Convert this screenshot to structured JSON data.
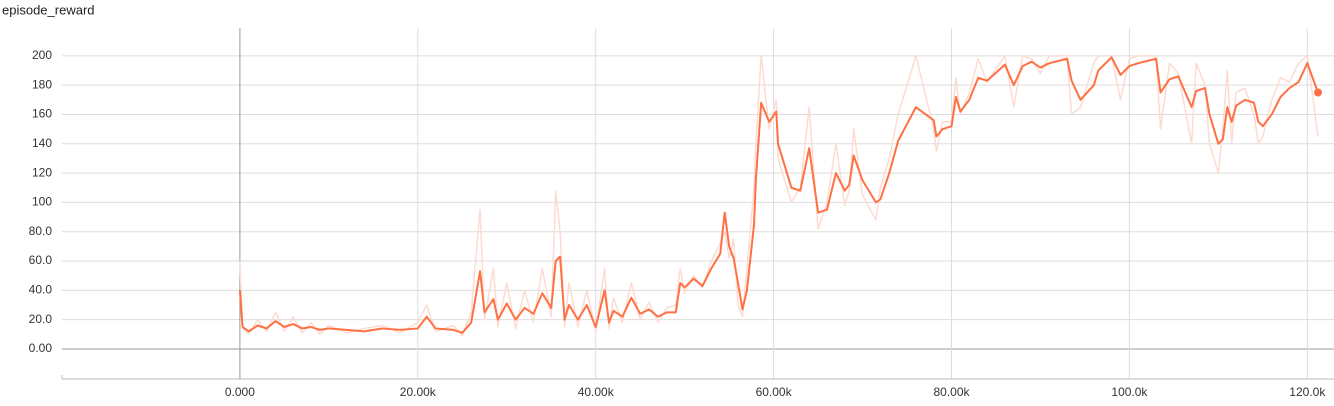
{
  "chart_data": {
    "type": "line",
    "title": "episode_reward",
    "x": [
      0,
      300,
      1000,
      2000,
      3000,
      4000,
      5000,
      6000,
      7000,
      8000,
      9000,
      10000,
      12000,
      14000,
      16000,
      18000,
      20000,
      21000,
      22000,
      24000,
      25000,
      26000,
      27000,
      27500,
      28500,
      29000,
      30000,
      31000,
      32000,
      33000,
      34000,
      35000,
      35500,
      36000,
      36500,
      37000,
      38000,
      39000,
      40000,
      41000,
      41500,
      42000,
      43000,
      44000,
      45000,
      46000,
      47000,
      48000,
      49000,
      49500,
      50000,
      51000,
      52000,
      53000,
      54000,
      54500,
      55000,
      55500,
      56000,
      56500,
      57000,
      57800,
      58000,
      58600,
      59500,
      60300,
      60500,
      62000,
      63000,
      64000,
      65000,
      66000,
      67000,
      68000,
      68500,
      69000,
      70000,
      71500,
      72000,
      73000,
      74000,
      76000,
      78000,
      78300,
      79000,
      80000,
      80500,
      81000,
      82000,
      83000,
      84000,
      86000,
      87000,
      88000,
      89000,
      90000,
      91000,
      93000,
      93500,
      94500,
      96000,
      96500,
      98000,
      99000,
      100000,
      101000,
      103000,
      103500,
      104500,
      105500,
      107000,
      107500,
      108500,
      109000,
      110000,
      110500,
      111000,
      111500,
      112000,
      113000,
      114000,
      114500,
      115000,
      116000,
      117000,
      118000,
      119000,
      120000,
      121200
    ],
    "series": [
      {
        "color": "#fcdcd2",
        "values": [
          60,
          14,
          10,
          20,
          12,
          25,
          12,
          22,
          11,
          18,
          10,
          16,
          11,
          14,
          16,
          11,
          18,
          30,
          12,
          16,
          9,
          25,
          95,
          20,
          55,
          15,
          45,
          14,
          40,
          18,
          55,
          22,
          108,
          80,
          15,
          45,
          15,
          40,
          12,
          55,
          14,
          35,
          18,
          45,
          20,
          32,
          18,
          28,
          30,
          55,
          38,
          50,
          42,
          60,
          72,
          80,
          62,
          75,
          30,
          22,
          55,
          110,
          140,
          200,
          150,
          170,
          130,
          100,
          110,
          165,
          82,
          100,
          140,
          98,
          108,
          150,
          105,
          88,
          110,
          130,
          160,
          200,
          150,
          135,
          155,
          155,
          185,
          160,
          175,
          198,
          182,
          200,
          165,
          200,
          198,
          188,
          200,
          200,
          160,
          165,
          195,
          200,
          200,
          170,
          198,
          200,
          200,
          150,
          195,
          188,
          140,
          195,
          180,
          140,
          120,
          150,
          190,
          140,
          175,
          178,
          160,
          140,
          145,
          170,
          185,
          182,
          195,
          200,
          145
        ]
      },
      {
        "color": "#ff7043",
        "values": [
          40,
          15,
          12,
          16,
          14,
          19,
          15,
          17,
          14,
          15,
          13,
          14,
          13,
          12,
          14,
          13,
          14,
          22,
          14,
          13,
          11,
          18,
          53,
          25,
          34,
          20,
          31,
          20,
          28,
          24,
          38,
          28,
          60,
          63,
          20,
          30,
          20,
          30,
          15,
          40,
          18,
          26,
          22,
          35,
          24,
          27,
          22,
          25,
          25,
          45,
          42,
          48,
          43,
          55,
          65,
          93,
          70,
          62,
          45,
          27,
          40,
          85,
          115,
          168,
          155,
          162,
          140,
          110,
          108,
          137,
          93,
          95,
          120,
          108,
          112,
          132,
          115,
          100,
          102,
          120,
          142,
          165,
          156,
          145,
          150,
          152,
          172,
          162,
          170,
          185,
          183,
          194,
          180,
          193,
          196,
          192,
          195,
          198,
          183,
          170,
          180,
          190,
          199,
          187,
          193,
          195,
          198,
          175,
          184,
          186,
          165,
          176,
          178,
          160,
          140,
          143,
          165,
          155,
          166,
          170,
          168,
          155,
          152,
          160,
          172,
          178,
          182,
          195,
          175
        ]
      }
    ],
    "xlim": [
      -20000,
      123000
    ],
    "ylim": [
      -20.5,
      219
    ],
    "xticks": [
      {
        "value": 0,
        "label": "0.000"
      },
      {
        "value": 20000,
        "label": "20.00k"
      },
      {
        "value": 40000,
        "label": "40.00k"
      },
      {
        "value": 60000,
        "label": "60.00k"
      },
      {
        "value": 80000,
        "label": "80.00k"
      },
      {
        "value": 100000,
        "label": "100.0k"
      },
      {
        "value": 120000,
        "label": "120.0k"
      }
    ],
    "yticks": [
      {
        "value": 0,
        "label": "0.00"
      },
      {
        "value": 20,
        "label": "20.0"
      },
      {
        "value": 40,
        "label": "40.0"
      },
      {
        "value": 60,
        "label": "60.0"
      },
      {
        "value": 80,
        "label": "80.0"
      },
      100,
      120,
      140,
      160,
      180,
      200
    ],
    "grid": true
  }
}
